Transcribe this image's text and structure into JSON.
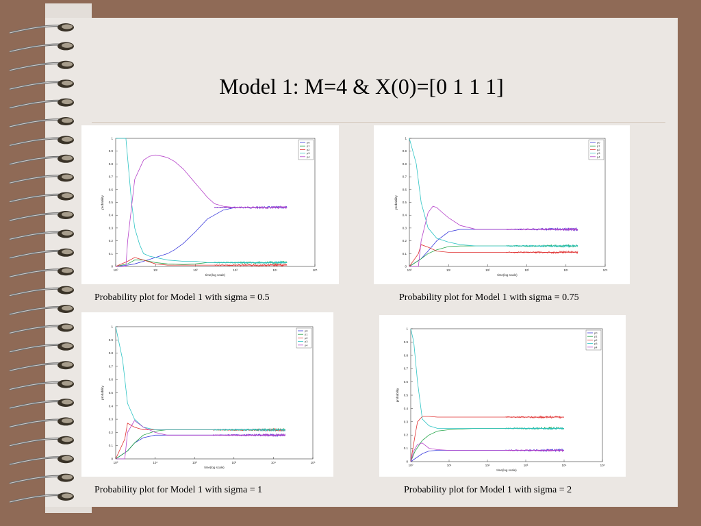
{
  "slide": {
    "title": "Model 1: M=4 & X(0)=[0 1 1 1]"
  },
  "colors": {
    "background": "#8f6a56",
    "page": "#ebe7e3",
    "p0": "#3b3bdc",
    "p1": "#22a447",
    "p2": "#e03131",
    "p3": "#2ec4c4",
    "p4": "#b542c9"
  },
  "chart_data": [
    {
      "type": "line",
      "caption": "Probability plot for Model 1 with sigma = 0.5",
      "xlabel": "time(log scale)",
      "ylabel": "probability",
      "xscale": "log",
      "xlim": [
        1,
        100000
      ],
      "ylim": [
        0,
        1
      ],
      "xticks": [
        "10⁰",
        "10¹",
        "10²",
        "10³",
        "10⁴",
        "10⁵"
      ],
      "yticks": [
        "0",
        "0.1",
        "0.2",
        "0.3",
        "0.4",
        "0.5",
        "0.6",
        "0.7",
        "0.8",
        "0.9",
        "1"
      ],
      "legend_position": "top-right",
      "grid": false,
      "series": [
        {
          "name": "p0",
          "color": "#3b3bdc",
          "x": [
            1,
            2,
            3,
            5,
            10,
            20,
            30,
            50,
            100,
            200,
            500,
            1000,
            2000,
            5000,
            20000
          ],
          "y": [
            0,
            0.01,
            0.02,
            0.04,
            0.07,
            0.1,
            0.13,
            0.18,
            0.27,
            0.37,
            0.44,
            0.46,
            0.46,
            0.46,
            0.46
          ]
        },
        {
          "name": "p1",
          "color": "#22a447",
          "x": [
            1,
            2,
            3,
            5,
            10,
            20,
            50,
            100,
            200,
            500,
            1000,
            5000,
            20000
          ],
          "y": [
            0,
            0.02,
            0.05,
            0.05,
            0.03,
            0.02,
            0.015,
            0.02,
            0.03,
            0.03,
            0.03,
            0.03,
            0.03
          ]
        },
        {
          "name": "p2",
          "color": "#e03131",
          "x": [
            1,
            2,
            3,
            5,
            10,
            20,
            50,
            100,
            200,
            500,
            1000,
            5000,
            20000
          ],
          "y": [
            0,
            0.04,
            0.07,
            0.05,
            0.02,
            0.01,
            0.01,
            0.01,
            0.01,
            0.01,
            0.01,
            0.01,
            0.01
          ]
        },
        {
          "name": "p3",
          "color": "#2ec4c4",
          "x": [
            1,
            1.8,
            2.5,
            3,
            4,
            5,
            7,
            10,
            20,
            50,
            100,
            200,
            500,
            1000,
            5000,
            20000
          ],
          "y": [
            1,
            1,
            0.5,
            0.3,
            0.17,
            0.1,
            0.08,
            0.07,
            0.05,
            0.04,
            0.04,
            0.03,
            0.03,
            0.03,
            0.03,
            0.03
          ]
        },
        {
          "name": "p4",
          "color": "#b542c9",
          "x": [
            1,
            1.8,
            2,
            3,
            5,
            7,
            10,
            15,
            20,
            30,
            50,
            100,
            200,
            300,
            500,
            1000,
            5000,
            20000
          ],
          "y": [
            0,
            0,
            0.2,
            0.68,
            0.83,
            0.86,
            0.87,
            0.86,
            0.85,
            0.82,
            0.76,
            0.65,
            0.54,
            0.49,
            0.47,
            0.46,
            0.46,
            0.46
          ]
        }
      ]
    },
    {
      "type": "line",
      "caption": "Probability plot for Model 1 with sigma = 0.75",
      "xlabel": "time(log scale)",
      "ylabel": "probability",
      "xscale": "log",
      "xlim": [
        1,
        100000
      ],
      "ylim": [
        0,
        1
      ],
      "xticks": [
        "10⁰",
        "10¹",
        "10²",
        "10³",
        "10⁴",
        "10⁵"
      ],
      "yticks": [
        "0",
        "0.1",
        "0.2",
        "0.3",
        "0.4",
        "0.5",
        "0.6",
        "0.7",
        "0.8",
        "0.9",
        "1"
      ],
      "legend_position": "top-right",
      "grid": false,
      "series": [
        {
          "name": "p0",
          "color": "#3b3bdc",
          "x": [
            1,
            2,
            3,
            5,
            10,
            20,
            50,
            100,
            500,
            5000,
            20000
          ],
          "y": [
            0,
            0.06,
            0.12,
            0.2,
            0.27,
            0.29,
            0.29,
            0.29,
            0.29,
            0.29,
            0.29
          ]
        },
        {
          "name": "p1",
          "color": "#22a447",
          "x": [
            1,
            2,
            3,
            5,
            10,
            20,
            50,
            100,
            500,
            5000,
            20000
          ],
          "y": [
            0,
            0.06,
            0.1,
            0.13,
            0.155,
            0.16,
            0.16,
            0.16,
            0.16,
            0.16,
            0.16
          ]
        },
        {
          "name": "p2",
          "color": "#e03131",
          "x": [
            1,
            1.7,
            2,
            3,
            5,
            10,
            20,
            50,
            100,
            500,
            5000,
            20000
          ],
          "y": [
            0,
            0.1,
            0.17,
            0.15,
            0.12,
            0.11,
            0.11,
            0.11,
            0.11,
            0.11,
            0.11,
            0.11
          ]
        },
        {
          "name": "p3",
          "color": "#2ec4c4",
          "x": [
            1,
            1.5,
            2,
            3,
            5,
            10,
            20,
            50,
            100,
            500,
            5000,
            20000
          ],
          "y": [
            1,
            0.8,
            0.5,
            0.3,
            0.22,
            0.19,
            0.17,
            0.16,
            0.16,
            0.16,
            0.16,
            0.16
          ]
        },
        {
          "name": "p4",
          "color": "#b542c9",
          "x": [
            1,
            1.7,
            2,
            3,
            4,
            5,
            7,
            10,
            20,
            50,
            100,
            500,
            5000,
            20000
          ],
          "y": [
            0,
            0,
            0.2,
            0.42,
            0.47,
            0.46,
            0.42,
            0.38,
            0.32,
            0.29,
            0.29,
            0.29,
            0.29,
            0.29
          ]
        }
      ]
    },
    {
      "type": "line",
      "caption": "Probability plot for Model 1 with sigma = 1",
      "xlabel": "time(log scale)",
      "ylabel": "probability",
      "xscale": "log",
      "xlim": [
        1,
        100000
      ],
      "ylim": [
        0,
        1
      ],
      "xticks": [
        "10⁰",
        "10¹",
        "10²",
        "10³",
        "10⁴",
        "10⁵"
      ],
      "yticks": [
        "0",
        "0.1",
        "0.2",
        "0.3",
        "0.4",
        "0.5",
        "0.6",
        "0.7",
        "0.8",
        "0.9",
        "1"
      ],
      "legend_position": "top-right",
      "grid": false,
      "series": [
        {
          "name": "p0",
          "color": "#3b3bdc",
          "x": [
            1,
            2,
            3,
            5,
            10,
            20,
            50,
            100,
            500,
            5000,
            20000
          ],
          "y": [
            0,
            0.06,
            0.12,
            0.16,
            0.18,
            0.18,
            0.18,
            0.18,
            0.18,
            0.18,
            0.18
          ]
        },
        {
          "name": "p1",
          "color": "#22a447",
          "x": [
            1,
            2,
            3,
            5,
            10,
            20,
            50,
            100,
            500,
            5000,
            20000
          ],
          "y": [
            0,
            0.06,
            0.12,
            0.18,
            0.21,
            0.22,
            0.22,
            0.22,
            0.22,
            0.22,
            0.22
          ]
        },
        {
          "name": "p2",
          "color": "#e03131",
          "x": [
            1,
            1.7,
            2,
            3,
            5,
            10,
            20,
            50,
            100,
            500,
            5000,
            20000
          ],
          "y": [
            0,
            0.15,
            0.27,
            0.24,
            0.22,
            0.22,
            0.22,
            0.22,
            0.22,
            0.22,
            0.22,
            0.22
          ]
        },
        {
          "name": "p3",
          "color": "#2ec4c4",
          "x": [
            1,
            1.5,
            2,
            3,
            5,
            10,
            20,
            50,
            100,
            500,
            5000,
            20000
          ],
          "y": [
            1,
            0.75,
            0.42,
            0.3,
            0.24,
            0.22,
            0.22,
            0.22,
            0.22,
            0.22,
            0.22,
            0.22
          ]
        },
        {
          "name": "p4",
          "color": "#b542c9",
          "x": [
            1,
            1.7,
            2,
            3,
            5,
            10,
            20,
            50,
            100,
            500,
            5000,
            20000
          ],
          "y": [
            0,
            0,
            0.2,
            0.29,
            0.24,
            0.2,
            0.18,
            0.18,
            0.18,
            0.18,
            0.18,
            0.18
          ]
        }
      ]
    },
    {
      "type": "line",
      "caption": "Probability plot for Model 1 with sigma = 2",
      "xlabel": "time(log scale)",
      "ylabel": "probability",
      "xscale": "log",
      "xlim": [
        1,
        100000
      ],
      "ylim": [
        0,
        1
      ],
      "xticks": [
        "10⁰",
        "10¹",
        "10²",
        "10³",
        "10⁴",
        "10⁵"
      ],
      "yticks": [
        "0",
        "0.1",
        "0.2",
        "0.3",
        "0.4",
        "0.5",
        "0.6",
        "0.7",
        "0.8",
        "0.9",
        "1"
      ],
      "legend_position": "top-right",
      "grid": false,
      "series": [
        {
          "name": "p0",
          "color": "#3b3bdc",
          "x": [
            1,
            2,
            3,
            5,
            10,
            20,
            50,
            100,
            500,
            5000,
            10000
          ],
          "y": [
            0,
            0.06,
            0.08,
            0.085,
            0.085,
            0.085,
            0.085,
            0.085,
            0.085,
            0.085,
            0.085
          ]
        },
        {
          "name": "p1",
          "color": "#22a447",
          "x": [
            1,
            1.3,
            2,
            3,
            5,
            10,
            20,
            50,
            100,
            500,
            5000,
            10000
          ],
          "y": [
            0,
            0.08,
            0.16,
            0.2,
            0.23,
            0.24,
            0.245,
            0.25,
            0.25,
            0.25,
            0.25,
            0.25
          ]
        },
        {
          "name": "p2",
          "color": "#e03131",
          "x": [
            1,
            1.3,
            1.5,
            2,
            3,
            5,
            10,
            50,
            100,
            500,
            5000,
            10000
          ],
          "y": [
            0,
            0.2,
            0.3,
            0.34,
            0.34,
            0.335,
            0.335,
            0.335,
            0.335,
            0.335,
            0.335,
            0.335
          ]
        },
        {
          "name": "p3",
          "color": "#2ec4c4",
          "x": [
            1,
            1.2,
            1.5,
            2,
            3,
            5,
            10,
            20,
            50,
            100,
            500,
            5000,
            10000
          ],
          "y": [
            1,
            0.9,
            0.6,
            0.32,
            0.27,
            0.25,
            0.25,
            0.25,
            0.25,
            0.25,
            0.25,
            0.25,
            0.25
          ]
        },
        {
          "name": "p4",
          "color": "#b542c9",
          "x": [
            1,
            1.2,
            1.5,
            2,
            3,
            5,
            10,
            50,
            100,
            500,
            5000,
            10000
          ],
          "y": [
            0,
            0.08,
            0.13,
            0.14,
            0.1,
            0.09,
            0.085,
            0.085,
            0.085,
            0.085,
            0.085,
            0.085
          ]
        }
      ]
    }
  ]
}
